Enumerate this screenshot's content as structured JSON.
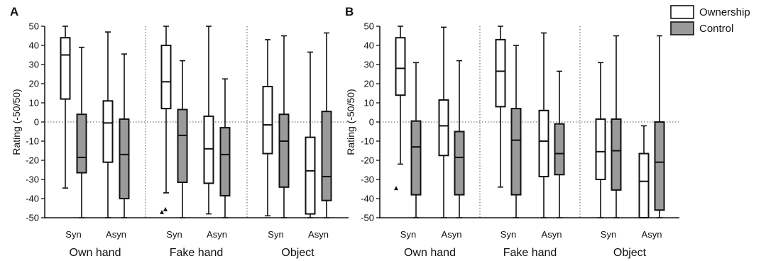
{
  "legend": {
    "placement": "top-right",
    "items": [
      {
        "label": "Ownership",
        "color": "#ffffff"
      },
      {
        "label": "Control",
        "color": "#9a9a9a"
      }
    ]
  },
  "chart_data": [
    {
      "type": "box",
      "panel": "A",
      "ylabel": "Rating (-50/50)",
      "ylim": [
        -50,
        50
      ],
      "yticks": [
        50,
        40,
        30,
        20,
        10,
        0,
        -10,
        -20,
        -30,
        -40,
        -50
      ],
      "reference_line": 0,
      "groups": [
        "Own hand",
        "Fake hand",
        "Object"
      ],
      "conditions": [
        "Syn",
        "Asyn"
      ],
      "series": [
        {
          "name": "Ownership",
          "color": "#ffffff",
          "boxes": [
            {
              "group": "Own hand",
              "condition": "Syn",
              "min": -34.5,
              "q1": 12,
              "median": 35,
              "q3": 44,
              "max": 50,
              "outliers": []
            },
            {
              "group": "Own hand",
              "condition": "Asyn",
              "min": -50,
              "q1": -21,
              "median": -0.5,
              "q3": 11,
              "max": 47,
              "outliers": []
            },
            {
              "group": "Fake hand",
              "condition": "Syn",
              "min": -37,
              "q1": 7,
              "median": 21,
              "q3": 40,
              "max": 50,
              "outliers": [
                -47,
                -45.5
              ]
            },
            {
              "group": "Fake hand",
              "condition": "Asyn",
              "min": -48,
              "q1": -32,
              "median": -14,
              "q3": 3,
              "max": 50,
              "outliers": []
            },
            {
              "group": "Object",
              "condition": "Syn",
              "min": -49,
              "q1": -16.5,
              "median": -1.5,
              "q3": 18.5,
              "max": 43,
              "outliers": []
            },
            {
              "group": "Object",
              "condition": "Asyn",
              "min": -50,
              "q1": -48,
              "median": -25.5,
              "q3": -8,
              "max": 36.5,
              "outliers": []
            }
          ]
        },
        {
          "name": "Control",
          "color": "#9a9a9a",
          "boxes": [
            {
              "group": "Own hand",
              "condition": "Syn",
              "min": -50,
              "q1": -26.5,
              "median": -18.5,
              "q3": 4,
              "max": 39,
              "outliers": []
            },
            {
              "group": "Own hand",
              "condition": "Asyn",
              "min": -50,
              "q1": -40,
              "median": -17,
              "q3": 1.5,
              "max": 35.5,
              "outliers": []
            },
            {
              "group": "Fake hand",
              "condition": "Syn",
              "min": -50,
              "q1": -31.5,
              "median": -7,
              "q3": 6.5,
              "max": 32,
              "outliers": []
            },
            {
              "group": "Fake hand",
              "condition": "Asyn",
              "min": -50,
              "q1": -38.5,
              "median": -17,
              "q3": -3,
              "max": 22.5,
              "outliers": []
            },
            {
              "group": "Object",
              "condition": "Syn",
              "min": -50,
              "q1": -34,
              "median": -10,
              "q3": 4,
              "max": 45,
              "outliers": []
            },
            {
              "group": "Object",
              "condition": "Asyn",
              "min": -50,
              "q1": -41,
              "median": -28.5,
              "q3": 5.5,
              "max": 46.5,
              "outliers": []
            }
          ]
        }
      ]
    },
    {
      "type": "box",
      "panel": "B",
      "ylabel": "Rating (-50/50)",
      "ylim": [
        -50,
        50
      ],
      "yticks": [
        50,
        40,
        30,
        20,
        10,
        0,
        -10,
        -20,
        -30,
        -40,
        -50
      ],
      "reference_line": 0,
      "groups": [
        "Own hand",
        "Fake hand",
        "Object"
      ],
      "conditions": [
        "Syn",
        "Asyn"
      ],
      "series": [
        {
          "name": "Ownership",
          "color": "#ffffff",
          "boxes": [
            {
              "group": "Own hand",
              "condition": "Syn",
              "min": -22,
              "q1": 14,
              "median": 28,
              "q3": 44,
              "max": 50,
              "outliers": [
                -34.5
              ]
            },
            {
              "group": "Own hand",
              "condition": "Asyn",
              "min": -50,
              "q1": -17.5,
              "median": -2,
              "q3": 11.5,
              "max": 49.5,
              "outliers": []
            },
            {
              "group": "Fake hand",
              "condition": "Syn",
              "min": -34,
              "q1": 8,
              "median": 26.5,
              "q3": 43,
              "max": 50,
              "outliers": []
            },
            {
              "group": "Fake hand",
              "condition": "Asyn",
              "min": -50,
              "q1": -28.5,
              "median": -10,
              "q3": 6,
              "max": 46.5,
              "outliers": []
            },
            {
              "group": "Object",
              "condition": "Syn",
              "min": -50,
              "q1": -30,
              "median": -15.5,
              "q3": 1.5,
              "max": 31,
              "outliers": []
            },
            {
              "group": "Object",
              "condition": "Asyn",
              "min": -50,
              "q1": -50,
              "median": -31,
              "q3": -16.5,
              "max": -2,
              "outliers": []
            }
          ]
        },
        {
          "name": "Control",
          "color": "#9a9a9a",
          "boxes": [
            {
              "group": "Own hand",
              "condition": "Syn",
              "min": -50,
              "q1": -38,
              "median": -13,
              "q3": 0.5,
              "max": 31,
              "outliers": []
            },
            {
              "group": "Own hand",
              "condition": "Asyn",
              "min": -50,
              "q1": -38,
              "median": -18.5,
              "q3": -5,
              "max": 32,
              "outliers": []
            },
            {
              "group": "Fake hand",
              "condition": "Syn",
              "min": -50,
              "q1": -38,
              "median": -9.5,
              "q3": 7,
              "max": 40,
              "outliers": []
            },
            {
              "group": "Fake hand",
              "condition": "Asyn",
              "min": -50,
              "q1": -27.5,
              "median": -16.5,
              "q3": -1,
              "max": 26.5,
              "outliers": []
            },
            {
              "group": "Object",
              "condition": "Syn",
              "min": -50,
              "q1": -35.5,
              "median": -15,
              "q3": 1.5,
              "max": 45,
              "outliers": []
            },
            {
              "group": "Object",
              "condition": "Asyn",
              "min": -50,
              "q1": -46,
              "median": -21,
              "q3": 0,
              "max": 45,
              "outliers": []
            }
          ]
        }
      ]
    }
  ]
}
